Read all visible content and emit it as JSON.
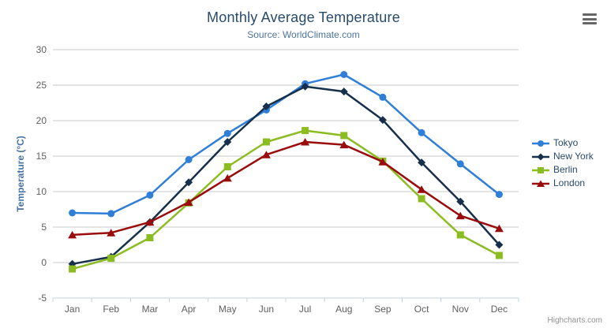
{
  "title": "Monthly Average Temperature",
  "subtitle": "Source: WorldClimate.com",
  "credits": "Highcharts.com",
  "chart_data": {
    "type": "line",
    "categories": [
      "Jan",
      "Feb",
      "Mar",
      "Apr",
      "May",
      "Jun",
      "Jul",
      "Aug",
      "Sep",
      "Oct",
      "Nov",
      "Dec"
    ],
    "series": [
      {
        "name": "Tokyo",
        "color": "#2f7ed8",
        "marker": "circle",
        "values": [
          7.0,
          6.9,
          9.5,
          14.5,
          18.2,
          21.5,
          25.2,
          26.5,
          23.3,
          18.3,
          13.9,
          9.6
        ]
      },
      {
        "name": "New York",
        "color": "#16304c",
        "marker": "diamond",
        "values": [
          -0.2,
          0.8,
          5.7,
          11.3,
          17.0,
          22.0,
          24.8,
          24.1,
          20.1,
          14.1,
          8.6,
          2.5
        ]
      },
      {
        "name": "Berlin",
        "color": "#8bbc21",
        "marker": "square",
        "values": [
          -0.9,
          0.6,
          3.5,
          8.4,
          13.5,
          17.0,
          18.6,
          17.9,
          14.3,
          9.0,
          3.9,
          1.0
        ]
      },
      {
        "name": "London",
        "color": "#9a0b0b",
        "marker": "triangle",
        "values": [
          3.9,
          4.2,
          5.7,
          8.5,
          11.9,
          15.2,
          17.0,
          16.6,
          14.2,
          10.3,
          6.6,
          4.8
        ]
      }
    ],
    "title": "Monthly Average Temperature",
    "xlabel": "",
    "ylabel": "Temperature (°C)",
    "ylim": [
      -5,
      30
    ],
    "ytick_interval": 5,
    "grid": true,
    "legend_position": "right"
  },
  "colors": {
    "grid_line": "#c9c9c9",
    "axis_line": "#c0d0e0",
    "tick_label": "#606060",
    "axis_title": "#4572a7",
    "title_text": "#274b6d",
    "subtitle_text": "#4d759e",
    "legend_text": "#274b6d",
    "credits_text": "#909090",
    "menu_icon": "#666666"
  }
}
